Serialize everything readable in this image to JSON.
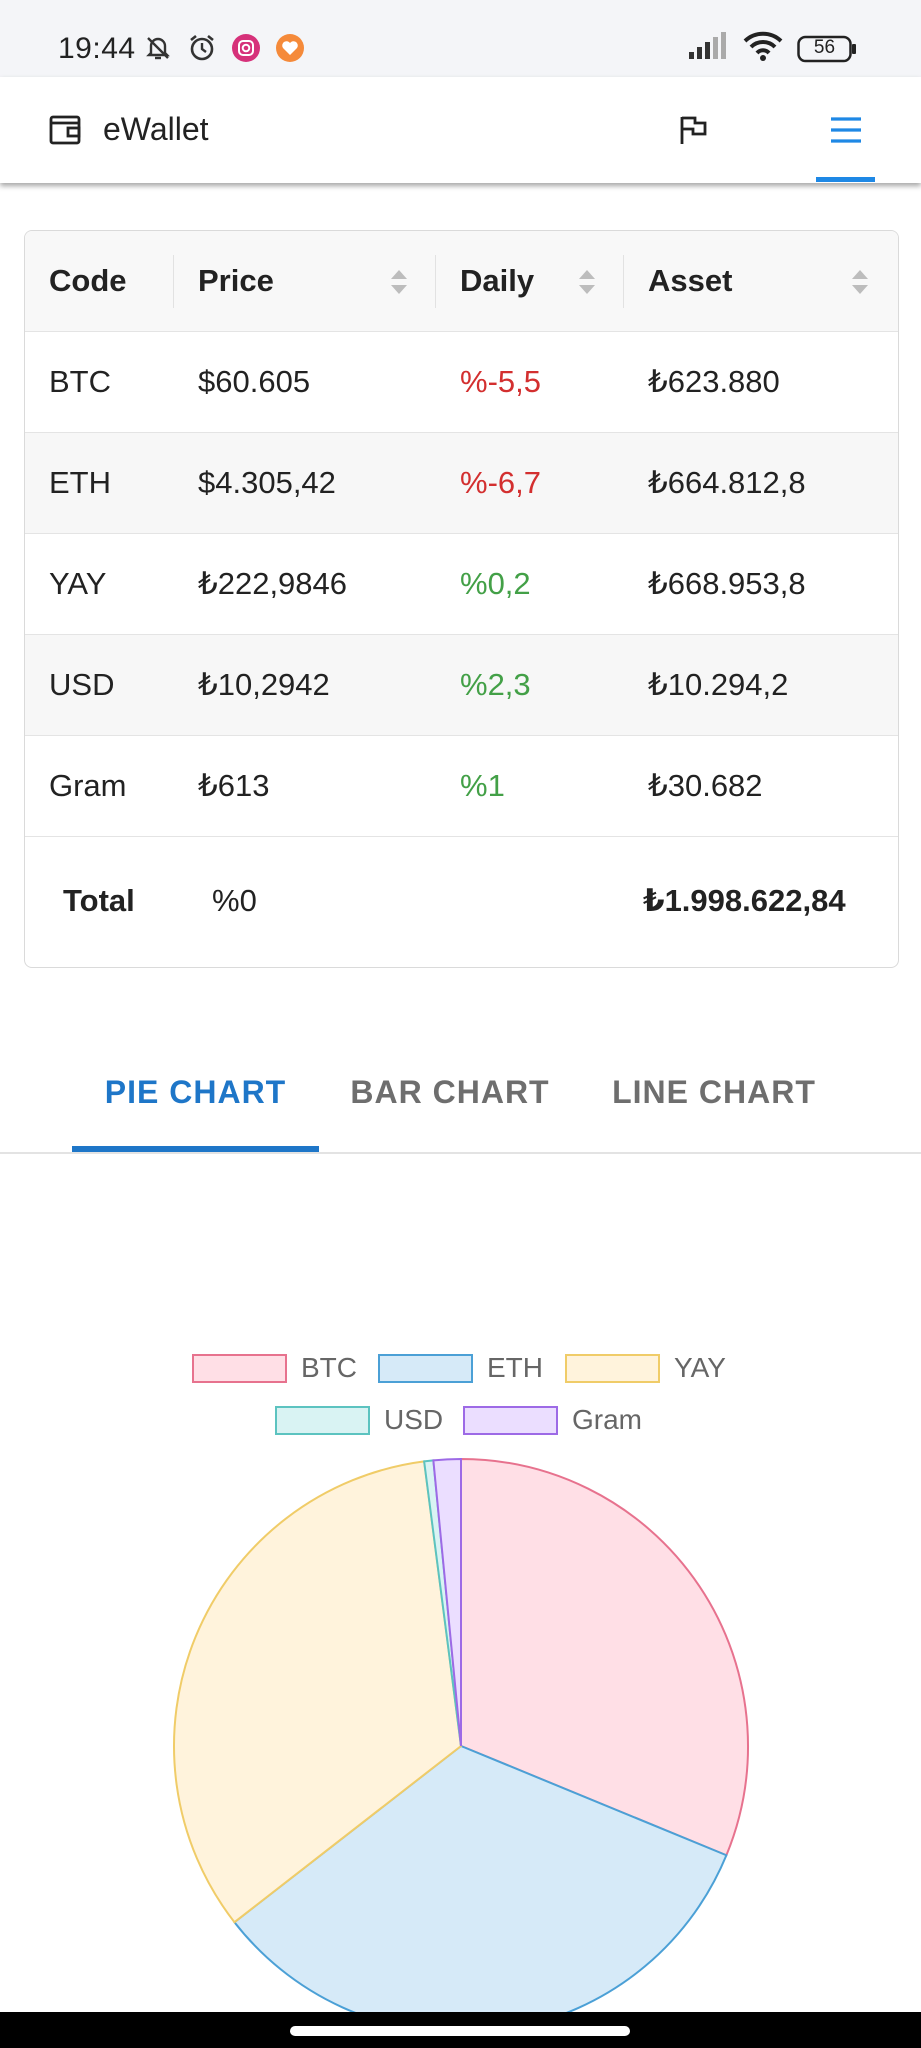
{
  "status": {
    "time": "19:44",
    "battery": "56"
  },
  "app_bar": {
    "title": "eWallet"
  },
  "table": {
    "headers": [
      "Code",
      "Price",
      "Daily",
      "Asset"
    ],
    "rows": [
      {
        "code": "BTC",
        "price": "$60.605",
        "daily": "%-5,5",
        "asset": "₺623.880"
      },
      {
        "code": "ETH",
        "price": "$4.305,42",
        "daily": "%-6,7",
        "asset": "₺664.812,8"
      },
      {
        "code": "YAY",
        "price": "₺222,9846",
        "daily": "%0,2",
        "asset": "₺668.953,8"
      },
      {
        "code": "USD",
        "price": "₺10,2942",
        "daily": "%2,3",
        "asset": "₺10.294,2"
      },
      {
        "code": "Gram",
        "price": "₺613",
        "daily": "%1",
        "asset": "₺30.682"
      }
    ],
    "total": {
      "label": "Total",
      "daily": "%0",
      "asset": "₺1.998.622,84"
    }
  },
  "tabs": [
    "PIE CHART",
    "BAR CHART",
    "LINE CHART"
  ],
  "colors": {
    "accent": "#1e76c8",
    "negative": "#d32f2f",
    "positive": "#43a047"
  },
  "chart_data": {
    "type": "pie",
    "categories": [
      "BTC",
      "ETH",
      "YAY",
      "USD",
      "Gram"
    ],
    "values": [
      623880,
      664812.8,
      668953.8,
      10294.2,
      30682
    ],
    "legend_position": "top",
    "colors": {
      "BTC": {
        "fill": "#ffdfe6",
        "stroke": "#e7728e"
      },
      "ETH": {
        "fill": "#d6eaf8",
        "stroke": "#4ba0d6"
      },
      "YAY": {
        "fill": "#fff3dc",
        "stroke": "#f0cc68"
      },
      "USD": {
        "fill": "#d9f3f3",
        "stroke": "#5cc3c0"
      },
      "Gram": {
        "fill": "#ebdeff",
        "stroke": "#9d6ae6"
      }
    }
  }
}
